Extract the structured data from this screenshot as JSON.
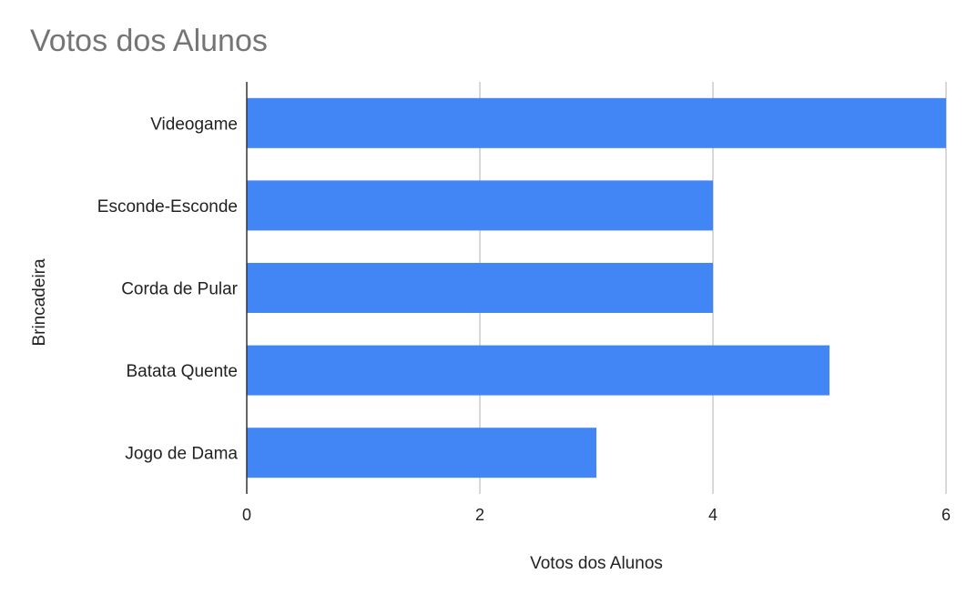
{
  "chart_data": {
    "type": "bar",
    "orientation": "horizontal",
    "title": "Votos dos Alunos",
    "xlabel": "Votos dos Alunos",
    "ylabel": "Brincadeira",
    "categories": [
      "Videogame",
      "Esconde-Esconde",
      "Corda de Pular",
      "Batata Quente",
      "Jogo de Dama"
    ],
    "values": [
      6,
      4,
      4,
      5,
      3
    ],
    "xlim": [
      0,
      6
    ],
    "xticks": [
      0,
      2,
      4,
      6
    ],
    "grid": true,
    "bar_color": "#4285f4"
  }
}
